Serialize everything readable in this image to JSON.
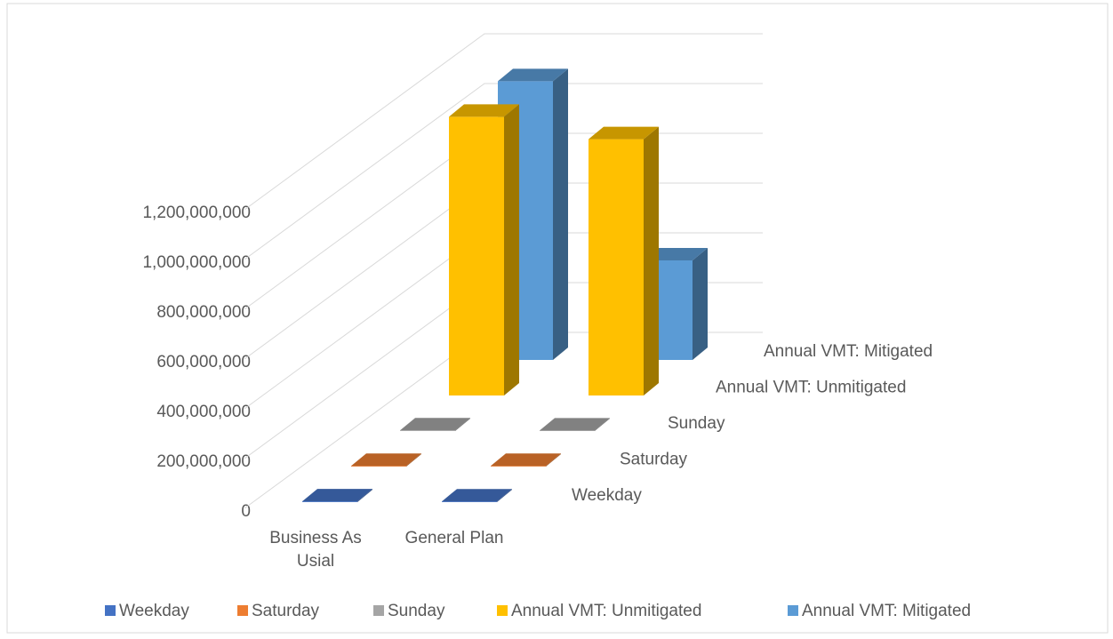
{
  "chart_data": {
    "type": "bar3d",
    "categories": [
      "Business As Usial",
      "General Plan"
    ],
    "series": [
      {
        "name": "Weekday",
        "color": "#4472c4",
        "values": [
          3100000,
          2900000
        ]
      },
      {
        "name": "Saturday",
        "color": "#ed7d31",
        "values": [
          2800000,
          2600000
        ]
      },
      {
        "name": "Sunday",
        "color": "#a5a5a5",
        "values": [
          2500000,
          2300000
        ]
      },
      {
        "name": "Annual VMT: Unmitigated",
        "color": "#ffc000",
        "values": [
          1120000000,
          1030000000
        ]
      },
      {
        "name": "Annual VMT: Mitigated",
        "color": "#5b9bd5",
        "values": [
          1120000000,
          400000000
        ]
      }
    ],
    "ylim": [
      0,
      1200000000
    ],
    "yticks": [
      0,
      {
        "value": 200000000,
        "label": "200,000,000"
      },
      {
        "value": 400000000,
        "label": "400,000,000"
      },
      {
        "value": 600000000,
        "label": "600,000,000"
      },
      {
        "value": 800000000,
        "label": "800,000,000"
      },
      {
        "value": 1000000000,
        "label": "1,000,000,000"
      },
      {
        "value": 1200000000,
        "label": "1,200,000,000"
      }
    ],
    "grid": true,
    "legend": "bottom"
  }
}
